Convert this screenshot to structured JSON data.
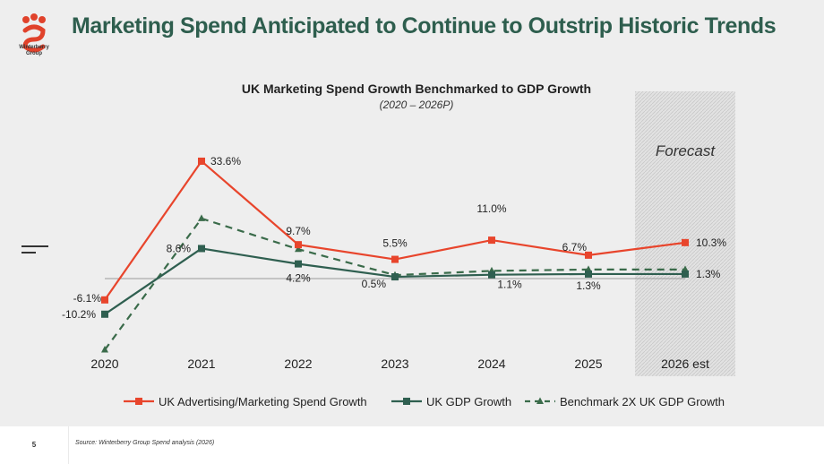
{
  "header": {
    "title": "Marketing Spend Anticipated to Continue to Outstrip Historic Trends",
    "logo_text": "Winterberry\nGroup"
  },
  "footer": {
    "page_number": "5",
    "source": "Source: Winterberry Group Spend analysis (2026)"
  },
  "colors": {
    "brand_green": "#2e5e4e",
    "spend_red": "#e8452c",
    "gdp_green": "#2f5f50",
    "benchmark_green": "#3a6b4a",
    "logo_red": "#e0422b"
  },
  "chart_data": {
    "type": "line",
    "title": "UK Marketing Spend Growth Benchmarked to GDP Growth",
    "subtitle": "(2020 – 2026P)",
    "forecast_label": "Forecast",
    "categories": [
      "2020",
      "2021",
      "2022",
      "2023",
      "2024",
      "2025",
      "2026 est"
    ],
    "ylim": [
      -14,
      38
    ],
    "legend_position": "bottom",
    "series": [
      {
        "name": "UK Advertising/Marketing Spend Growth",
        "values": [
          -6.1,
          33.6,
          9.7,
          5.5,
          11.0,
          6.7,
          10.3
        ],
        "labels": [
          "-6.1%",
          "33.6%",
          "9.7%",
          "5.5%",
          "11.0%",
          "6.7%",
          "10.3%"
        ],
        "marker": "square",
        "style": "solid"
      },
      {
        "name": "UK GDP Growth",
        "values": [
          -10.2,
          8.6,
          4.2,
          0.5,
          1.1,
          1.3,
          1.3
        ],
        "labels": [
          "-10.2%",
          "8.6%",
          "4.2%",
          "0.5%",
          "1.1%",
          "1.3%",
          "1.3%"
        ],
        "marker": "square",
        "style": "solid"
      },
      {
        "name": "Benchmark 2X UK GDP Growth",
        "values": [
          -20.4,
          17.2,
          8.4,
          1.0,
          2.2,
          2.6,
          2.6
        ],
        "marker": "triangle",
        "style": "dashed"
      }
    ]
  }
}
